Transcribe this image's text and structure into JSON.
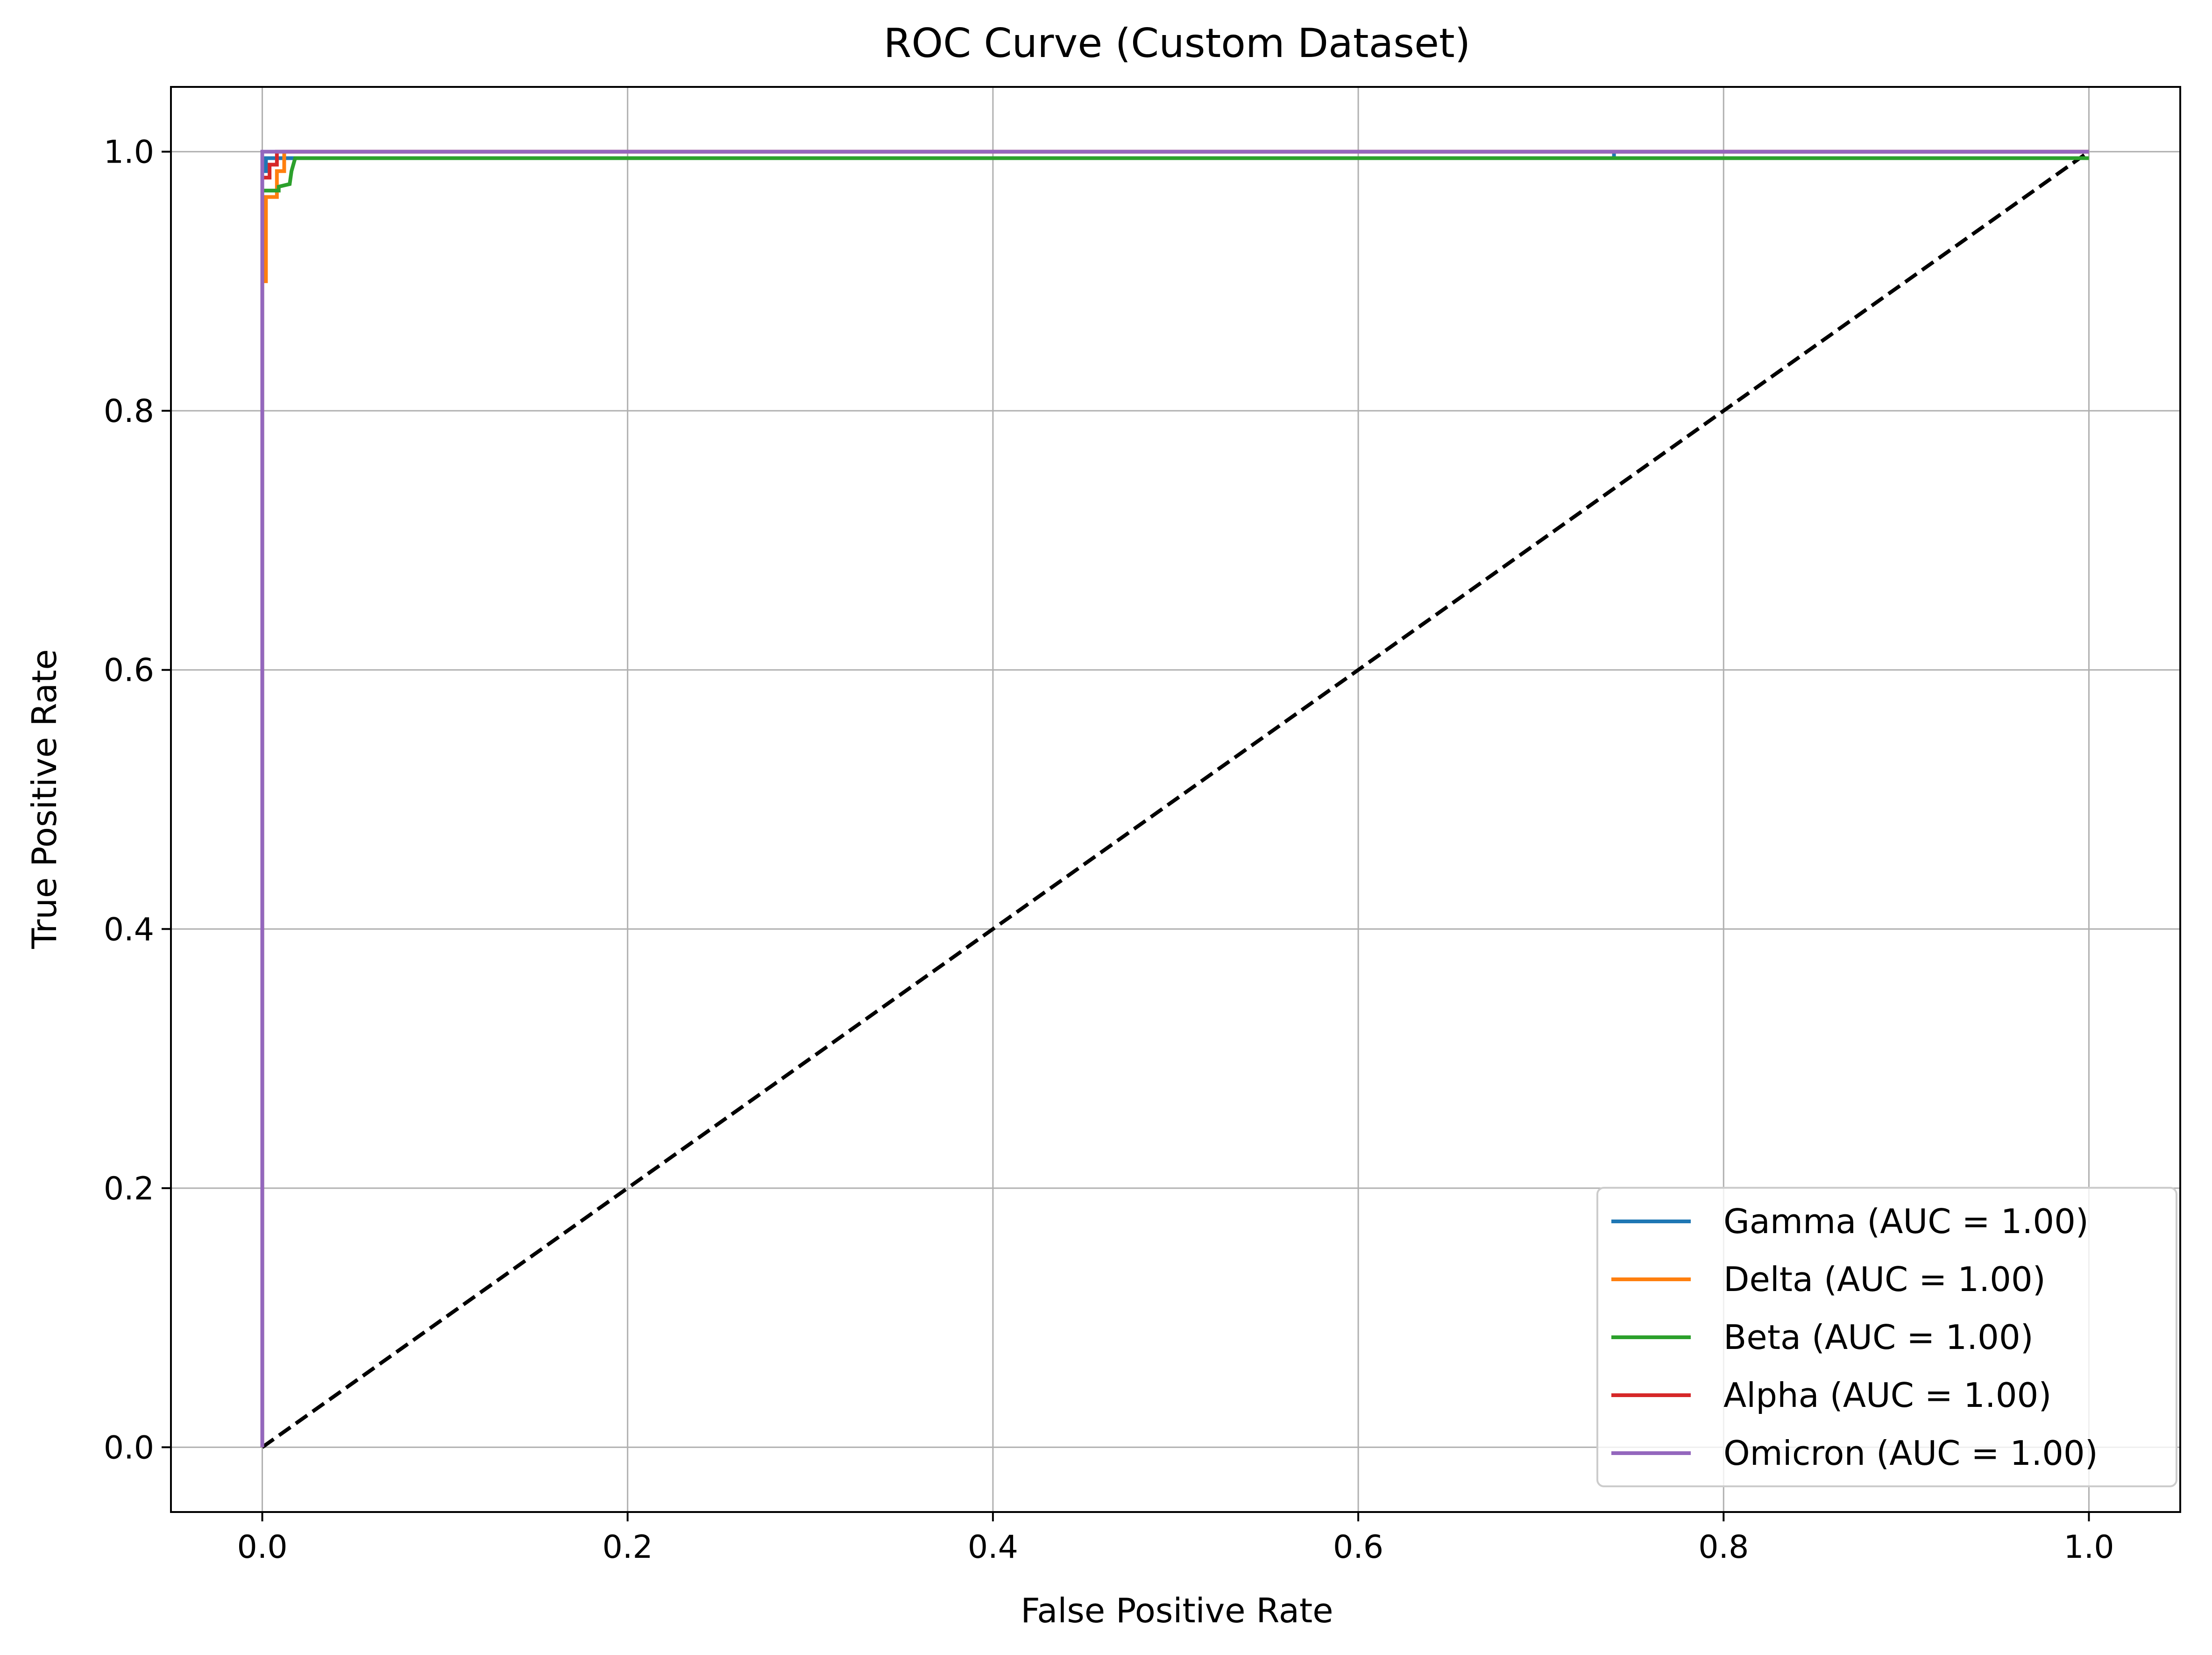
{
  "chart_data": {
    "type": "line",
    "title": "ROC Curve (Custom Dataset)",
    "xlabel": "False Positive Rate",
    "ylabel": "True Positive Rate",
    "xlim": [
      -0.05,
      1.05
    ],
    "ylim": [
      -0.05,
      1.05
    ],
    "xticks": [
      0.0,
      0.2,
      0.4,
      0.6,
      0.8,
      1.0
    ],
    "yticks": [
      0.0,
      0.2,
      0.4,
      0.6,
      0.8,
      1.0
    ],
    "xtick_labels": [
      "0.0",
      "0.2",
      "0.4",
      "0.6",
      "0.8",
      "1.0"
    ],
    "ytick_labels": [
      "0.0",
      "0.2",
      "0.4",
      "0.6",
      "0.8",
      "1.0"
    ],
    "grid": true,
    "legend_position": "bottom-right",
    "series": [
      {
        "name": "Gamma (AUC = 1.00)",
        "color": "#1f77b4",
        "x": [
          0.0,
          0.0,
          0.002,
          0.002,
          0.74,
          0.74,
          1.0
        ],
        "y": [
          0.0,
          0.985,
          0.985,
          0.995,
          0.995,
          1.0,
          1.0
        ]
      },
      {
        "name": "Delta (AUC = 1.00)",
        "color": "#ff7f0e",
        "x": [
          0.0,
          0.0,
          0.002,
          0.002,
          0.008,
          0.008,
          0.012,
          0.012,
          1.0
        ],
        "y": [
          0.0,
          0.9,
          0.9,
          0.965,
          0.965,
          0.985,
          0.985,
          1.0,
          1.0
        ]
      },
      {
        "name": "Beta (AUC = 1.00)",
        "color": "#2ca02c",
        "x": [
          0.0,
          0.0,
          0.009,
          0.009,
          0.015,
          0.016,
          0.018,
          1.0
        ],
        "y": [
          0.0,
          0.97,
          0.97,
          0.973,
          0.975,
          0.985,
          0.995,
          0.995
        ]
      },
      {
        "name": "Alpha (AUC = 1.00)",
        "color": "#d62728",
        "x": [
          0.0,
          0.0,
          0.004,
          0.004,
          0.008,
          0.008,
          1.0
        ],
        "y": [
          0.0,
          0.98,
          0.98,
          0.99,
          0.99,
          1.0,
          1.0
        ]
      },
      {
        "name": "Omicron (AUC = 1.00)",
        "color": "#9467bd",
        "x": [
          0.0,
          0.0,
          1.0
        ],
        "y": [
          0.0,
          1.0,
          1.0
        ]
      }
    ],
    "reference_line": {
      "x": [
        0.0,
        1.0
      ],
      "y": [
        0.0,
        1.0
      ],
      "color": "#000000",
      "style": "dashed"
    }
  }
}
